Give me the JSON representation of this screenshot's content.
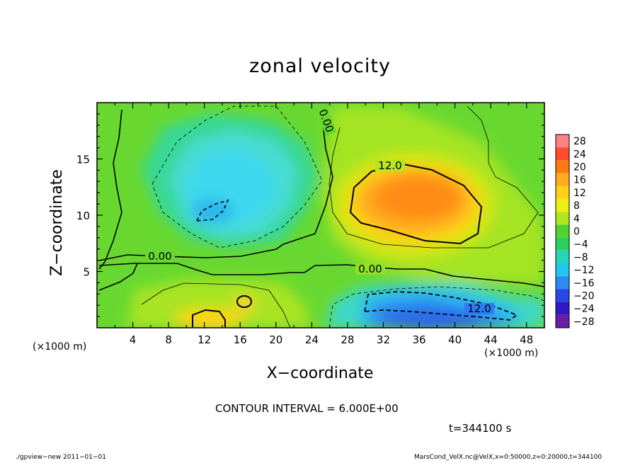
{
  "chart_data": {
    "type": "heatmap",
    "title": "zonal velocity",
    "xlabel": "X−coordinate",
    "ylabel": "Z−coordinate",
    "x_unit": "(×1000 m)",
    "z_unit": "(×1000 m)",
    "x_range": [
      0,
      50
    ],
    "z_range": [
      0,
      20
    ],
    "x_ticks": [
      "4",
      "8",
      "12",
      "16",
      "20",
      "24",
      "28",
      "32",
      "36",
      "40",
      "44",
      "48"
    ],
    "z_ticks": [
      "5",
      "10",
      "15"
    ],
    "colorbar_levels": [
      "28",
      "24",
      "20",
      "16",
      "12",
      "8",
      "4",
      "0",
      "−4",
      "−8",
      "−12",
      "−16",
      "−20",
      "−24",
      "−28"
    ],
    "colorbar_colors": [
      "#ff8080",
      "#ff4c2c",
      "#ff7a10",
      "#ffab1c",
      "#ffd21a",
      "#eeee10",
      "#b2e61c",
      "#52d22e",
      "#2ad05e",
      "#24d6b6",
      "#22c6ee",
      "#2a8cf0",
      "#2a46e4",
      "#3218c0",
      "#6a1ea8"
    ],
    "contour_labels": [
      "0.00",
      "0.00",
      "0.00",
      "12.0",
      "12.0"
    ],
    "features": [
      {
        "name": "positive jet core",
        "x": 36,
        "z": 11.5,
        "value": 16
      },
      {
        "name": "negative core aloft",
        "x": 13,
        "z": 10.5,
        "value": -12
      },
      {
        "name": "negative near-surface core",
        "x": 38,
        "z": 1.5,
        "value": -16
      },
      {
        "name": "positive near-surface core",
        "x": 13.5,
        "z": 1.0,
        "value": 12
      }
    ],
    "contour_interval": "CONTOUR INTERVAL = 6.000E+00",
    "time_label": "t=344100 s"
  },
  "footer": {
    "program": "./gpview−new   2011−01−01",
    "source": "MarsCond_VelX.nc@VelX,x=0:50000,z=0:20000,t=344100"
  }
}
